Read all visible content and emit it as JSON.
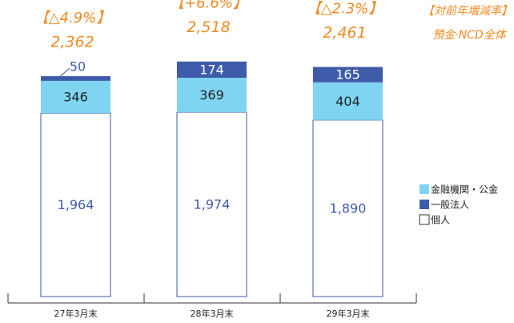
{
  "chart_data": {
    "type": "stacked_bar",
    "categories": [
      "27年3月末",
      "28年3月末",
      "29年3月末"
    ],
    "series": [
      {
        "name": "個人",
        "color": "#ffffff",
        "values": [
          1964,
          1974,
          1890
        ],
        "value_labels": [
          "1,964",
          "1,974",
          "1,890"
        ]
      },
      {
        "name": "金融機関・公金",
        "color": "#7fd4f2",
        "values": [
          346,
          369,
          404
        ]
      },
      {
        "name": "一般法人",
        "color": "#3d5ba9",
        "values": [
          50,
          174,
          165
        ]
      }
    ],
    "totals": [
      2362,
      2518,
      2461
    ],
    "total_labels": [
      "2,362",
      "2,518",
      "2,461"
    ],
    "changes": [
      -4.9,
      6.6,
      -2.3
    ],
    "change_labels": [
      "【△4.9%】",
      "【+6.6%】",
      "【△2.3%】"
    ],
    "annotation": [
      "【対前年増減率】",
      "預金·NCD全体"
    ]
  }
}
